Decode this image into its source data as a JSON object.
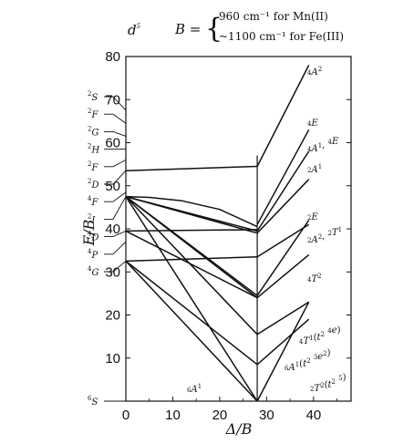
{
  "header": {
    "config_main": "d",
    "config_sup": "5",
    "b_main": "B =",
    "b_line1": "960 cm⁻¹ for Mn(II)",
    "b_line2": "~1100 cm⁻¹ for Fe(III)"
  },
  "chart_data": {
    "type": "line",
    "title": "d5",
    "xlabel": "Δ/B",
    "ylabel": "E/B",
    "xlim": [
      0,
      48
    ],
    "ylim": [
      0,
      80
    ],
    "xticks": [
      "0",
      "10",
      "20",
      "30",
      "40"
    ],
    "yticks": [
      "10",
      "20",
      "30",
      "40",
      "50",
      "60",
      "70",
      "80"
    ],
    "crossover": 28,
    "levels_left": [
      {
        "label": "2S",
        "y": 67.5
      },
      {
        "label": "2F",
        "y": 64.5
      },
      {
        "label": "2G",
        "y": 61.5
      },
      {
        "label": "2H",
        "y": 58.5
      },
      {
        "label": "2F",
        "y": 56.0
      },
      {
        "label": "2D",
        "y": 53.5
      },
      {
        "label": "4F",
        "y": 48.5
      },
      {
        "label": "2I",
        "y": 47.5
      },
      {
        "label": "4D",
        "y": 39.5
      },
      {
        "label": "4P",
        "y": 37.0
      },
      {
        "label": "4G",
        "y": 32.5
      },
      {
        "label": "6S",
        "y": 0
      }
    ],
    "labels_right": [
      {
        "label": "4A2"
      },
      {
        "label": "4E"
      },
      {
        "label": "4A1, 4E"
      },
      {
        "label": "2A1"
      },
      {
        "label": "2E"
      },
      {
        "label": "2A2, 2T1"
      },
      {
        "label": "4T2"
      },
      {
        "label": "4T1(t2 4e)"
      },
      {
        "label": "6A1(t2 3e2)"
      },
      {
        "label": "2T2(t2 5)"
      }
    ],
    "label_ground_low": "6A1",
    "curves": [
      {
        "points": [
          [
            0,
            53.5
          ],
          [
            28,
            54.5
          ]
        ]
      },
      {
        "points": [
          [
            28,
            54.5
          ],
          [
            39,
            78
          ]
        ]
      },
      {
        "points": [
          [
            0,
            47.5
          ],
          [
            5,
            47.3
          ],
          [
            12,
            46.5
          ],
          [
            20,
            44.5
          ],
          [
            28,
            40.5
          ]
        ]
      },
      {
        "points": [
          [
            28,
            41
          ],
          [
            39,
            63
          ]
        ]
      },
      {
        "points": [
          [
            0,
            47.5
          ],
          [
            28,
            39.5
          ]
        ]
      },
      {
        "points": [
          [
            28,
            39.5
          ],
          [
            39,
            58
          ]
        ]
      },
      {
        "points": [
          [
            0,
            47.5
          ],
          [
            28,
            39
          ]
        ]
      },
      {
        "points": [
          [
            28,
            39
          ],
          [
            39,
            51.5
          ]
        ]
      },
      {
        "points": [
          [
            0,
            39.5
          ],
          [
            28,
            39.8
          ]
        ]
      },
      {
        "points": [
          [
            0,
            47.5
          ],
          [
            28,
            24.5
          ]
        ]
      },
      {
        "points": [
          [
            0,
            47.5
          ],
          [
            28,
            24
          ]
        ]
      },
      {
        "points": [
          [
            0,
            47.5
          ],
          [
            28,
            15.5
          ]
        ]
      },
      {
        "points": [
          [
            0,
            39.5
          ],
          [
            28,
            24
          ]
        ]
      },
      {
        "points": [
          [
            0,
            32.5
          ],
          [
            28,
            33.5
          ]
        ]
      },
      {
        "points": [
          [
            0,
            32.5
          ],
          [
            28,
            8.5
          ]
        ]
      },
      {
        "points": [
          [
            0,
            47.5
          ],
          [
            28,
            0
          ]
        ]
      },
      {
        "points": [
          [
            0,
            32.5
          ],
          [
            28,
            0
          ]
        ]
      },
      {
        "points": [
          [
            28,
            33.5
          ],
          [
            39,
            41
          ]
        ]
      },
      {
        "points": [
          [
            28,
            24.5
          ],
          [
            39,
            42
          ]
        ]
      },
      {
        "points": [
          [
            28,
            24
          ],
          [
            39,
            34
          ]
        ]
      },
      {
        "points": [
          [
            28,
            15.5
          ],
          [
            39,
            23
          ]
        ]
      },
      {
        "points": [
          [
            28,
            8.5
          ],
          [
            39,
            19
          ]
        ]
      },
      {
        "points": [
          [
            28,
            0
          ],
          [
            39,
            23
          ]
        ]
      }
    ]
  }
}
